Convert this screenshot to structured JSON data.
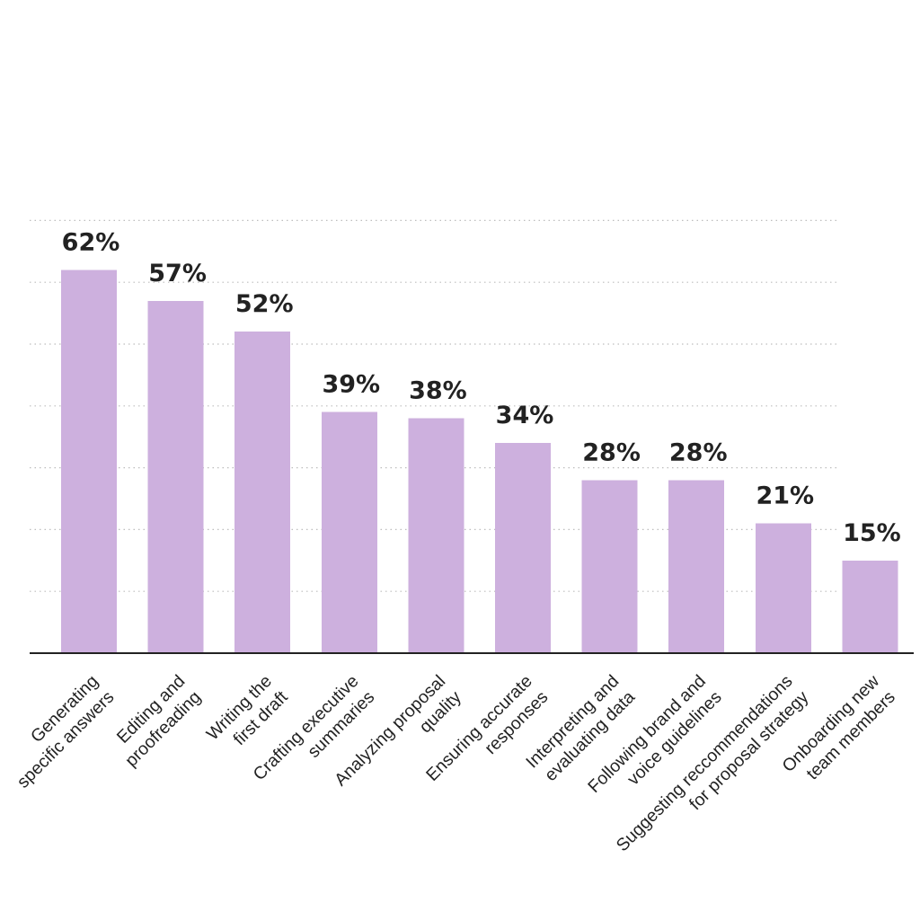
{
  "chart_data": {
    "type": "bar",
    "title": "",
    "xlabel": "",
    "ylabel": "",
    "ylim": [
      0,
      70
    ],
    "grid": true,
    "grid_values": [
      10,
      20,
      30,
      40,
      50,
      60,
      70
    ],
    "colors": {
      "bar": "#cdb0de",
      "axis": "#222222",
      "grid": "#bdbdbd",
      "text": "#222222"
    },
    "categories": [
      [
        "Generating",
        "specific answers"
      ],
      [
        "Editing and",
        "proofreading"
      ],
      [
        "Writing the",
        "first draft"
      ],
      [
        "Crafting executive",
        "summaries"
      ],
      [
        "Analyzing proposal",
        "quality"
      ],
      [
        "Ensuring accurate",
        "responses"
      ],
      [
        "Interpreting and",
        "evaluating data"
      ],
      [
        "Following brand and",
        "voice guidelines"
      ],
      [
        "Suggesting reccommendations",
        "for proposal strategy"
      ],
      [
        "Onboarding new",
        "team members"
      ]
    ],
    "values": [
      62,
      57,
      52,
      39,
      38,
      34,
      28,
      28,
      21,
      15
    ],
    "value_labels": [
      "62%",
      "57%",
      "52%",
      "39%",
      "38%",
      "34%",
      "28%",
      "28%",
      "21%",
      "15%"
    ]
  }
}
